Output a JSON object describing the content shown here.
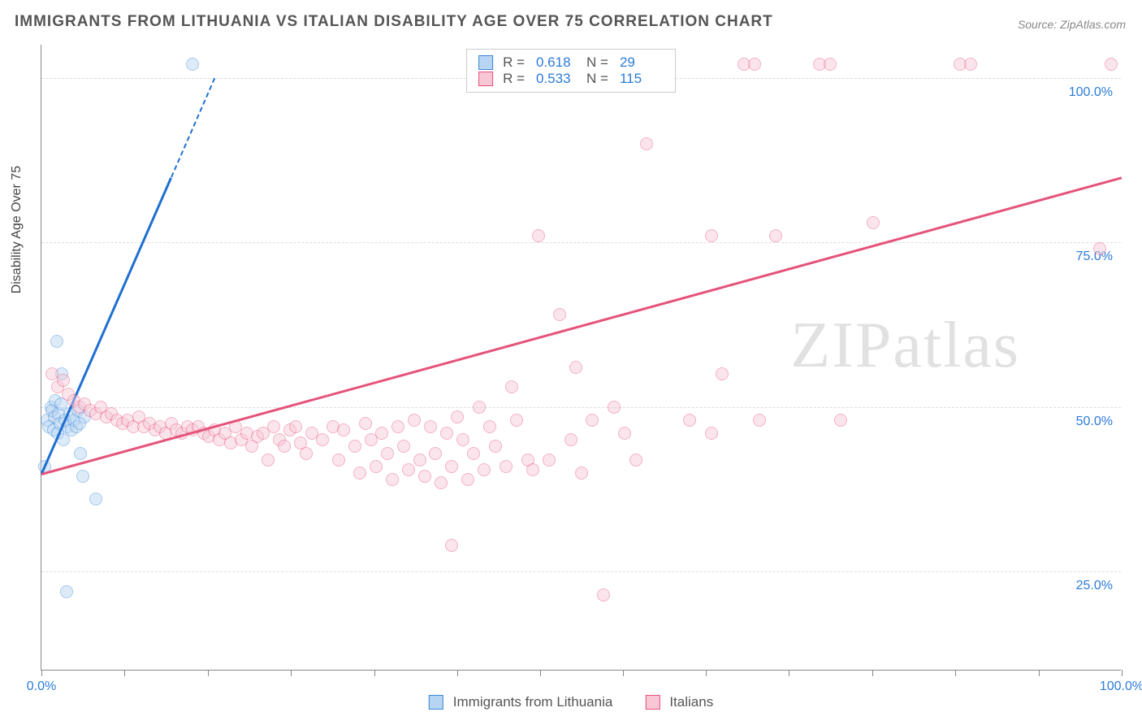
{
  "title": "IMMIGRANTS FROM LITHUANIA VS ITALIAN DISABILITY AGE OVER 75 CORRELATION CHART",
  "source": "Source: ZipAtlas.com",
  "watermark": "ZIPatlas",
  "chart": {
    "type": "scatter",
    "ylabel": "Disability Age Over 75",
    "background_color": "#ffffff",
    "grid_color": "#dddddd",
    "axis_color": "#888888",
    "tick_label_color": "#2b7bd9",
    "label_fontsize": 16,
    "title_fontsize": 19,
    "xlim": [
      0,
      100
    ],
    "ylim": [
      10,
      105
    ],
    "y_gridlines": [
      25,
      50,
      75,
      100
    ],
    "ytick_labels": [
      "25.0%",
      "50.0%",
      "75.0%",
      "100.0%"
    ],
    "x_ticks": [
      0,
      7.7,
      15.4,
      23.1,
      30.8,
      38.5,
      46.2,
      53.8,
      61.5,
      69.2,
      76.9,
      84.6,
      92.3,
      100
    ],
    "xtick_labels_visible": {
      "0": "0.0%",
      "100": "100.0%"
    },
    "marker_radius": 8,
    "marker_opacity": 0.45,
    "series": [
      {
        "name": "Immigrants from Lithuania",
        "label": "Immigrants from Lithuania",
        "border_color": "#3e86d6",
        "fill_color": "#b6d5f2",
        "trend_color": "#1f6fd0",
        "R": "0.618",
        "N": "29",
        "trend": {
          "x1": 0,
          "y1": 40,
          "x2": 16,
          "y2": 100,
          "dashed_from_x": 12
        },
        "points": [
          [
            0.3,
            41
          ],
          [
            0.5,
            48
          ],
          [
            0.7,
            47
          ],
          [
            0.9,
            50
          ],
          [
            1.0,
            49.5
          ],
          [
            1.1,
            46.5
          ],
          [
            1.2,
            48.5
          ],
          [
            1.3,
            51
          ],
          [
            1.4,
            60
          ],
          [
            1.5,
            46
          ],
          [
            1.6,
            49
          ],
          [
            1.7,
            47.5
          ],
          [
            1.8,
            50.5
          ],
          [
            2.0,
            45
          ],
          [
            2.2,
            48
          ],
          [
            2.4,
            47
          ],
          [
            2.6,
            49
          ],
          [
            2.8,
            46.5
          ],
          [
            3.0,
            48
          ],
          [
            3.2,
            47
          ],
          [
            3.4,
            49.5
          ],
          [
            3.6,
            43
          ],
          [
            3.8,
            39.5
          ],
          [
            4.0,
            48.5
          ],
          [
            5.0,
            36
          ],
          [
            1.9,
            55
          ],
          [
            2.3,
            22
          ],
          [
            3.5,
            47.5
          ],
          [
            14,
            102
          ]
        ]
      },
      {
        "name": "Italians",
        "label": "Italians",
        "border_color": "#e5537a",
        "fill_color": "#f8c7d6",
        "trend_color": "#e5537a",
        "R": "0.533",
        "N": "115",
        "trend": {
          "x1": 0,
          "y1": 40,
          "x2": 100,
          "y2": 85,
          "dashed_from_x": 100
        },
        "points": [
          [
            1,
            55
          ],
          [
            1.5,
            53
          ],
          [
            2,
            54
          ],
          [
            2.5,
            52
          ],
          [
            3,
            51
          ],
          [
            3.5,
            50
          ],
          [
            4,
            50.5
          ],
          [
            4.5,
            49.5
          ],
          [
            5,
            49
          ],
          [
            5.5,
            50
          ],
          [
            6,
            48.5
          ],
          [
            6.5,
            49
          ],
          [
            7,
            48
          ],
          [
            7.5,
            47.5
          ],
          [
            8,
            48
          ],
          [
            8.5,
            47
          ],
          [
            9,
            48.5
          ],
          [
            9.5,
            47
          ],
          [
            10,
            47.5
          ],
          [
            10.5,
            46.5
          ],
          [
            11,
            47
          ],
          [
            11.5,
            46
          ],
          [
            12,
            47.5
          ],
          [
            12.5,
            46.5
          ],
          [
            13,
            46
          ],
          [
            13.5,
            47
          ],
          [
            14,
            46.5
          ],
          [
            14.5,
            47
          ],
          [
            15,
            46
          ],
          [
            15.5,
            45.5
          ],
          [
            16,
            46.5
          ],
          [
            16.5,
            45
          ],
          [
            17,
            46
          ],
          [
            17.5,
            44.5
          ],
          [
            18,
            47
          ],
          [
            18.5,
            45
          ],
          [
            19,
            46
          ],
          [
            19.5,
            44
          ],
          [
            20,
            45.5
          ],
          [
            20.5,
            46
          ],
          [
            21,
            42
          ],
          [
            21.5,
            47
          ],
          [
            22,
            45
          ],
          [
            22.5,
            44
          ],
          [
            23,
            46.5
          ],
          [
            23.5,
            47
          ],
          [
            24,
            44.5
          ],
          [
            24.5,
            43
          ],
          [
            25,
            46
          ],
          [
            26,
            45
          ],
          [
            27,
            47
          ],
          [
            27.5,
            42
          ],
          [
            28,
            46.5
          ],
          [
            29,
            44
          ],
          [
            29.5,
            40
          ],
          [
            30,
            47.5
          ],
          [
            30.5,
            45
          ],
          [
            31,
            41
          ],
          [
            31.5,
            46
          ],
          [
            32,
            43
          ],
          [
            32.5,
            39
          ],
          [
            33,
            47
          ],
          [
            33.5,
            44
          ],
          [
            34,
            40.5
          ],
          [
            34.5,
            48
          ],
          [
            35,
            42
          ],
          [
            35.5,
            39.5
          ],
          [
            36,
            47
          ],
          [
            36.5,
            43
          ],
          [
            37,
            38.5
          ],
          [
            37.5,
            46
          ],
          [
            38,
            41
          ],
          [
            38.5,
            48.5
          ],
          [
            39,
            45
          ],
          [
            39.5,
            39
          ],
          [
            40,
            43
          ],
          [
            40.5,
            50
          ],
          [
            41,
            40.5
          ],
          [
            41.5,
            47
          ],
          [
            42,
            44
          ],
          [
            43,
            41
          ],
          [
            43.5,
            53
          ],
          [
            44,
            48
          ],
          [
            45,
            42
          ],
          [
            45.5,
            40.5
          ],
          [
            46,
            76
          ],
          [
            47,
            42
          ],
          [
            48,
            64
          ],
          [
            49,
            45
          ],
          [
            49.5,
            56
          ],
          [
            50,
            40
          ],
          [
            51,
            48
          ],
          [
            52,
            21.5
          ],
          [
            53,
            50
          ],
          [
            54,
            46
          ],
          [
            55,
            42
          ],
          [
            56,
            90
          ],
          [
            60,
            48
          ],
          [
            62,
            76
          ],
          [
            63,
            55
          ],
          [
            65,
            102
          ],
          [
            66,
            102
          ],
          [
            66.5,
            48
          ],
          [
            68,
            76
          ],
          [
            72,
            102
          ],
          [
            73,
            102
          ],
          [
            74,
            48
          ],
          [
            77,
            78
          ],
          [
            85,
            102
          ],
          [
            86,
            102
          ],
          [
            38,
            29
          ],
          [
            98,
            74
          ],
          [
            99,
            102
          ],
          [
            62,
            46
          ],
          [
            51,
            102
          ],
          [
            41.5,
            102
          ],
          [
            42.5,
            102
          ]
        ]
      }
    ],
    "legend_top": {
      "R_label": "R =",
      "N_label": "N ="
    },
    "legend_bottom": [
      {
        "swatch_border": "#3e86d6",
        "swatch_fill": "#b6d5f2",
        "label": "Immigrants from Lithuania"
      },
      {
        "swatch_border": "#e5537a",
        "swatch_fill": "#f8c7d6",
        "label": "Italians"
      }
    ]
  }
}
